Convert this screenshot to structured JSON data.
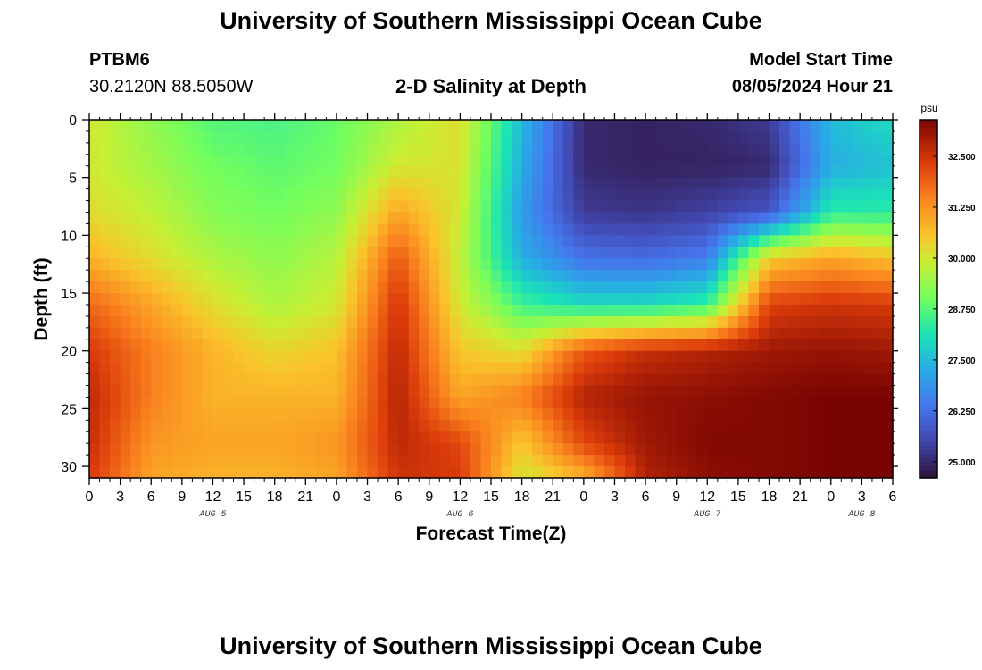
{
  "header": {
    "main_title": "University of Southern Mississippi Ocean Cube",
    "footer_title": "University of Southern Mississippi Ocean Cube",
    "station_id": "PTBM6",
    "station_coords": "30.2120N  88.5050W",
    "plot_title": "2-D Salinity at Depth",
    "model_start_label": "Model Start Time",
    "model_start_value": "08/05/2024 Hour 21"
  },
  "chart_data": {
    "type": "heatmap",
    "title": "2-D Salinity at Depth",
    "xlabel": "Forecast Time(Z)",
    "ylabel": "Depth (ft)",
    "x_tick_labels": [
      "0",
      "3",
      "6",
      "9",
      "12",
      "15",
      "18",
      "21",
      "0",
      "3",
      "6",
      "9",
      "12",
      "15",
      "18",
      "21",
      "0",
      "3",
      "6",
      "9",
      "12",
      "15",
      "18",
      "21",
      "0",
      "3",
      "6"
    ],
    "x_range_hours": [
      0,
      78
    ],
    "day_labels": [
      {
        "label": "AUG 5",
        "hour": 12
      },
      {
        "label": "AUG 6",
        "hour": 36
      },
      {
        "label": "AUG 7",
        "hour": 60
      },
      {
        "label": "AUG 8",
        "hour": 75
      }
    ],
    "y_tick_labels": [
      "0",
      "5",
      "10",
      "15",
      "20",
      "25",
      "30"
    ],
    "y_ticks": [
      0,
      5,
      10,
      15,
      20,
      25,
      30
    ],
    "ylim": [
      0,
      31
    ],
    "y_inverted": true,
    "colorbar": {
      "unit": "psu",
      "min": 24.6,
      "max": 33.4,
      "tick_values": [
        25.0,
        26.25,
        27.5,
        28.75,
        30.0,
        31.25,
        32.5
      ],
      "tick_labels": [
        "25.000",
        "26.250",
        "27.500",
        "28.750",
        "30.000",
        "31.250",
        "32.500"
      ]
    },
    "grid_hours": [
      0,
      6,
      12,
      18,
      24,
      30,
      36,
      42,
      48,
      54,
      60,
      66,
      72,
      78
    ],
    "grid_depths_ft": [
      0,
      4,
      8,
      12,
      16,
      20,
      24,
      28,
      31
    ],
    "salinity_psu": [
      [
        30.0,
        29.3,
        28.7,
        28.6,
        28.9,
        29.6,
        30.2,
        27.5,
        25.0,
        24.9,
        25.0,
        25.3,
        27.5,
        28.0
      ],
      [
        30.0,
        29.5,
        29.0,
        28.8,
        29.0,
        30.0,
        30.1,
        27.3,
        25.0,
        24.9,
        24.9,
        25.0,
        27.3,
        27.6
      ],
      [
        30.2,
        29.8,
        29.2,
        29.0,
        29.3,
        31.0,
        30.0,
        27.0,
        25.3,
        25.2,
        25.4,
        25.8,
        28.3,
        28.3
      ],
      [
        30.8,
        30.2,
        29.6,
        29.3,
        29.7,
        32.0,
        29.8,
        27.3,
        26.3,
        26.2,
        26.5,
        30.5,
        31.0,
        30.6
      ],
      [
        31.8,
        31.0,
        30.2,
        29.6,
        30.0,
        32.5,
        30.0,
        28.5,
        28.0,
        28.0,
        28.4,
        32.3,
        32.5,
        32.4
      ],
      [
        32.4,
        31.5,
        30.8,
        30.3,
        30.6,
        32.7,
        30.5,
        30.2,
        32.0,
        32.6,
        32.8,
        33.0,
        33.1,
        33.0
      ],
      [
        32.7,
        31.5,
        30.8,
        30.8,
        30.8,
        32.8,
        31.0,
        31.5,
        32.8,
        33.1,
        33.2,
        33.3,
        33.4,
        33.4
      ],
      [
        32.6,
        31.2,
        31.0,
        31.0,
        31.2,
        32.7,
        32.2,
        30.5,
        32.2,
        33.0,
        33.3,
        33.3,
        33.4,
        33.4
      ],
      [
        32.4,
        31.0,
        30.8,
        30.8,
        31.0,
        32.5,
        32.4,
        30.0,
        30.8,
        32.8,
        33.2,
        33.3,
        33.4,
        33.4
      ]
    ]
  }
}
